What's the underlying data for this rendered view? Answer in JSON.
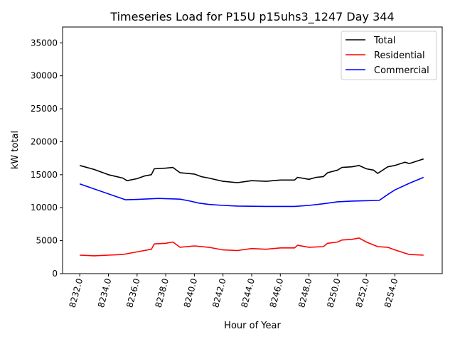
{
  "chart_data": {
    "type": "line",
    "title": "Timeseries Load for P15U p15uhs3_1247  Day 344",
    "xlabel": "Hour of Year",
    "ylabel": "kW total",
    "xlim": [
      8230.8,
      8257.3
    ],
    "ylim": [
      0,
      37400
    ],
    "xticks": [
      8232,
      8234,
      8236,
      8238,
      8240,
      8242,
      8244,
      8246,
      8248,
      8250,
      8252,
      8254
    ],
    "xtick_labels": [
      "8232.0",
      "8234.0",
      "8236.0",
      "8238.0",
      "8240.0",
      "8242.0",
      "8244.0",
      "8246.0",
      "8248.0",
      "8250.0",
      "8252.0",
      "8254.0"
    ],
    "yticks": [
      0,
      5000,
      10000,
      15000,
      20000,
      25000,
      30000,
      35000
    ],
    "ytick_labels": [
      "0",
      "5000",
      "10000",
      "15000",
      "20000",
      "25000",
      "30000",
      "35000"
    ],
    "grid": false,
    "legend_position": "top-right",
    "series": [
      {
        "name": "Total",
        "color": "#000000",
        "x": [
          8232,
          8233,
          8234,
          8235,
          8235.3,
          8236,
          8236.5,
          8237,
          8237.2,
          8238,
          8238.5,
          8239,
          8240,
          8240.5,
          8241,
          8242,
          8243,
          8244,
          8245,
          8246,
          8247,
          8247.2,
          8248,
          8248.5,
          8249,
          8249.3,
          8250,
          8250.3,
          8251,
          8251.5,
          8252,
          8252.5,
          8252.8,
          8253.5,
          8254,
          8254.7,
          8255,
          8256
        ],
        "y": [
          16400,
          15800,
          15000,
          14500,
          14100,
          14400,
          14800,
          15000,
          15900,
          16000,
          16100,
          15300,
          15100,
          14700,
          14500,
          14000,
          13800,
          14100,
          14000,
          14200,
          14200,
          14600,
          14300,
          14600,
          14700,
          15300,
          15700,
          16100,
          16200,
          16400,
          15900,
          15700,
          15200,
          16200,
          16400,
          16900,
          16700,
          17400
        ]
      },
      {
        "name": "Residential",
        "color": "#ff0000",
        "x": [
          8232,
          8233,
          8234,
          8235,
          8236,
          8236.5,
          8237,
          8237.2,
          8238,
          8238.5,
          8239,
          8240,
          8241,
          8242,
          8243,
          8244,
          8245,
          8246,
          8247,
          8247.2,
          8248,
          8249,
          8249.3,
          8250,
          8250.3,
          8251,
          8251.5,
          8252,
          8252.8,
          8253.5,
          8254,
          8255,
          8256
        ],
        "y": [
          2800,
          2700,
          2800,
          2900,
          3300,
          3500,
          3700,
          4500,
          4600,
          4800,
          4000,
          4200,
          4000,
          3600,
          3500,
          3800,
          3700,
          3900,
          3900,
          4300,
          4000,
          4100,
          4600,
          4800,
          5100,
          5200,
          5400,
          4800,
          4100,
          4000,
          3600,
          2900,
          2800
        ]
      },
      {
        "name": "Commercial",
        "color": "#0000ff",
        "x": [
          8232,
          8235.2,
          8236,
          8237.5,
          8239,
          8239.7,
          8240.3,
          8241,
          8242,
          8243,
          8245,
          8247,
          8248,
          8249,
          8250,
          8251,
          8252.9,
          8253.5,
          8254,
          8255,
          8256
        ],
        "y": [
          13600,
          11200,
          11250,
          11400,
          11300,
          11000,
          10700,
          10500,
          10350,
          10250,
          10200,
          10200,
          10350,
          10600,
          10900,
          11000,
          11100,
          12000,
          12700,
          13700,
          14600
        ]
      }
    ]
  }
}
